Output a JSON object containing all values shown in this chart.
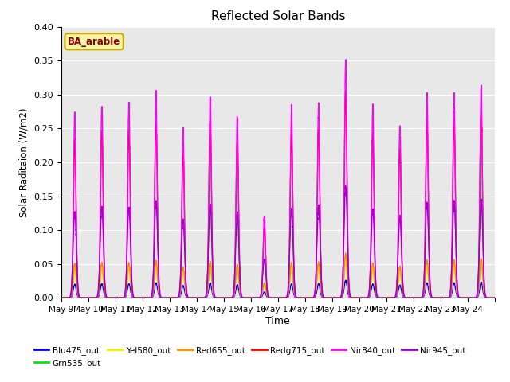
{
  "title": "Reflected Solar Bands",
  "xlabel": "Time",
  "ylabel": "Solar Raditaion (W/m2)",
  "ylim": [
    0.0,
    0.4
  ],
  "yticks": [
    0.0,
    0.05,
    0.1,
    0.15,
    0.2,
    0.25,
    0.3,
    0.35,
    0.4
  ],
  "bg_color": "#e8e8e8",
  "annotation_text": "BA_arable",
  "annotation_bg": "#f5f5aa",
  "annotation_fg": "#8b0000",
  "annotation_edge": "#ccaa00",
  "series": [
    {
      "name": "Blu475_out",
      "color": "#0000ff",
      "peak_scale": 0.022
    },
    {
      "name": "Grn535_out",
      "color": "#00ee00",
      "peak_scale": 0.052
    },
    {
      "name": "Yel580_out",
      "color": "#eeee00",
      "peak_scale": 0.048
    },
    {
      "name": "Red655_out",
      "color": "#ff8800",
      "peak_scale": 0.055
    },
    {
      "name": "Redg715_out",
      "color": "#ff0000",
      "peak_scale": 0.26
    },
    {
      "name": "Nir840_out",
      "color": "#ff00ff",
      "peak_scale": 0.3
    },
    {
      "name": "Nir945_out",
      "color": "#9900cc",
      "peak_scale": 0.14
    }
  ],
  "day_peaks": [
    0.9,
    0.95,
    0.95,
    1.0,
    0.82,
    0.98,
    0.88,
    0.4,
    0.93,
    0.95,
    1.17,
    0.93,
    0.85,
    1.0,
    1.0,
    1.05
  ],
  "n_days": 16,
  "pts_per_day": 288,
  "xtick_labels": [
    "May 9",
    "May 10",
    "May 11",
    "May 12",
    "May 13",
    "May 14",
    "May 15",
    "May 16",
    "May 17",
    "May 18",
    "May 19",
    "May 20",
    "May 21",
    "May 22",
    "May 23",
    "May 24"
  ],
  "legend_entries": [
    {
      "name": "Blu475_out",
      "color": "#0000ff"
    },
    {
      "name": "Grn535_out",
      "color": "#00ee00"
    },
    {
      "name": "Yel580_out",
      "color": "#eeee00"
    },
    {
      "name": "Red655_out",
      "color": "#ff8800"
    },
    {
      "name": "Redg715_out",
      "color": "#ff0000"
    },
    {
      "name": "Nir840_out",
      "color": "#ff00ff"
    },
    {
      "name": "Nir945_out",
      "color": "#9900cc"
    }
  ]
}
